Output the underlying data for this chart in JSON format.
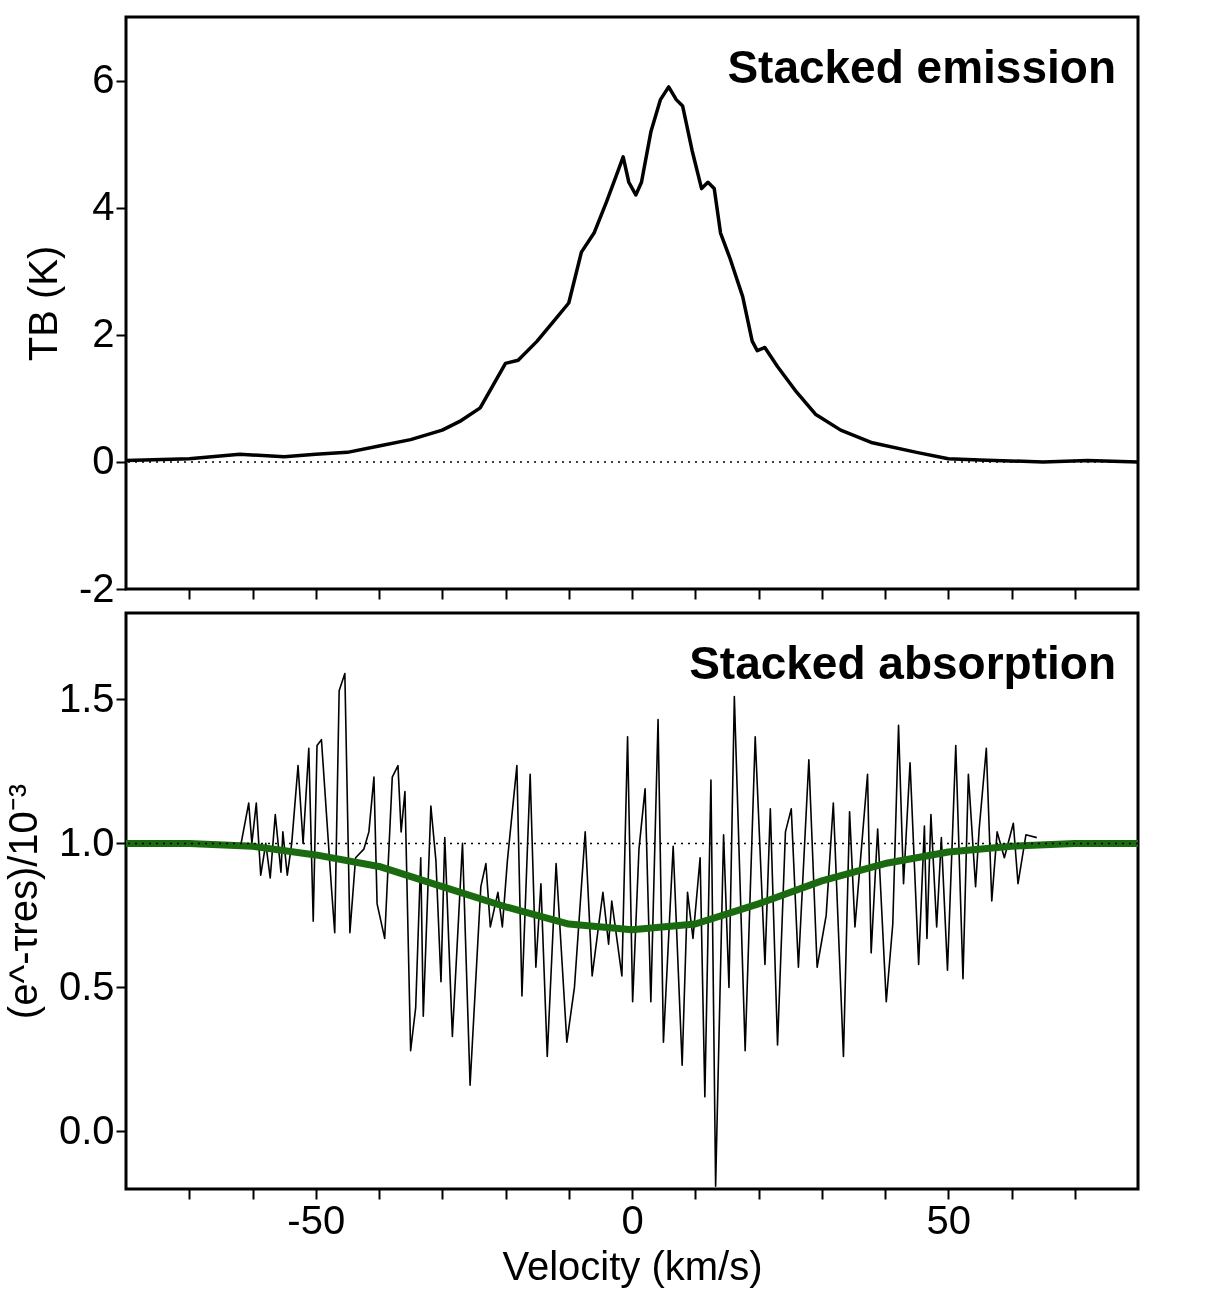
{
  "chart_data": [
    {
      "type": "line",
      "ylabel": "TB (K)",
      "xlim": [
        -80,
        80
      ],
      "ylim": [
        -2,
        7
      ],
      "tick_labels": "y",
      "xticks": [
        {
          "value": -70,
          "label": null
        },
        {
          "value": -60,
          "label": null
        },
        -50,
        {
          "value": -40,
          "label": null
        },
        {
          "value": -30,
          "label": null
        },
        {
          "value": -20,
          "label": null
        },
        {
          "value": -10,
          "label": null
        },
        0,
        {
          "value": 10,
          "label": null
        },
        {
          "value": 20,
          "label": null
        },
        {
          "value": 30,
          "label": null
        },
        {
          "value": 40,
          "label": null
        },
        50,
        {
          "value": 60,
          "label": null
        },
        {
          "value": 70,
          "label": null
        }
      ],
      "yticks": [
        -2,
        0,
        2,
        4,
        6
      ],
      "series": [
        {
          "color": "#000000",
          "x": [
            -80,
            -70,
            -62,
            -55,
            -50,
            -45,
            -40,
            -35,
            -30,
            -27,
            -24,
            -22,
            -20,
            -18,
            -15,
            -12.5,
            -10,
            -8,
            -6,
            -4,
            -2.5,
            -1.4,
            -0.5,
            0.6,
            1.5,
            3,
            4.5,
            5.8,
            7,
            8,
            9.5,
            11,
            12,
            13,
            14,
            15.5,
            17.5,
            19,
            19.8,
            21,
            23,
            26,
            29,
            33,
            38,
            45,
            50,
            55,
            65,
            72,
            80
          ],
          "values": [
            0.02,
            0.05,
            0.12,
            0.08,
            0.12,
            0.15,
            0.25,
            0.35,
            0.5,
            0.65,
            0.85,
            1.2,
            1.55,
            1.6,
            1.9,
            2.2,
            2.5,
            3.3,
            3.6,
            4.1,
            4.5,
            4.8,
            4.4,
            4.2,
            4.4,
            5.2,
            5.7,
            5.9,
            5.7,
            5.6,
            4.9,
            4.3,
            4.4,
            4.3,
            3.6,
            3.2,
            2.6,
            1.9,
            1.75,
            1.8,
            1.5,
            1.1,
            0.75,
            0.5,
            0.3,
            0.15,
            0.05,
            0.03,
            0.0,
            0.02,
            0.0
          ]
        }
      ],
      "ref_lines": [
        {
          "axis": "y",
          "value": 0,
          "line_style": "dotted"
        }
      ],
      "annotations": [
        "Stacked emission"
      ]
    },
    {
      "type": "line",
      "xlabel": "Velocity (km/s)",
      "ylabel": "(e^-τres)/10⁻³",
      "xlim": [
        -80,
        80
      ],
      "ylim": [
        -0.2,
        1.8
      ],
      "xticks": [
        {
          "value": -70,
          "label": null
        },
        {
          "value": -60,
          "label": null
        },
        -50,
        {
          "value": -40,
          "label": null
        },
        {
          "value": -30,
          "label": null
        },
        {
          "value": -20,
          "label": null
        },
        {
          "value": -10,
          "label": null
        },
        0,
        {
          "value": 10,
          "label": null
        },
        {
          "value": 20,
          "label": null
        },
        {
          "value": 30,
          "label": null
        },
        {
          "value": 40,
          "label": null
        },
        50,
        {
          "value": 60,
          "label": null
        },
        {
          "value": 70,
          "label": null
        }
      ],
      "yticks": [
        {
          "value": 0,
          "label": "0.0"
        },
        0.5,
        {
          "value": 1,
          "label": "1.0"
        },
        1.5
      ],
      "series": [
        {
          "color": "#000000",
          "x": [
            -61.8,
            -60.6,
            -60.1,
            -59.4,
            -58.7,
            -57.9,
            -57.2,
            -56.4,
            -55.5,
            -55.2,
            -54.5,
            -53.8,
            -52.8,
            -52.0,
            -51.1,
            -50.4,
            -49.8,
            -49.1,
            -47.5,
            -47.0,
            -46.3,
            -45.4,
            -44.6,
            -43.7,
            -42.4,
            -41.6,
            -40.8,
            -40.3,
            -39.1,
            -37.9,
            -37.0,
            -36.5,
            -35.9,
            -35.0,
            -34.2,
            -33.4,
            -33.0,
            -31.8,
            -31.0,
            -30.2,
            -29.6,
            -28.4,
            -26.8,
            -25.6,
            -23.9,
            -23.1,
            -22.4,
            -21.2,
            -20.5,
            -19.7,
            -18.2,
            -17.4,
            -16.1,
            -15.2,
            -14.4,
            -13.4,
            -12.0,
            -10.3,
            -9.1,
            -7.4,
            -6.3,
            -4.6,
            -3.7,
            -3.2,
            -1.6,
            -0.7,
            0.1,
            1.1,
            2.07,
            2.98,
            4.12,
            4.97,
            6.51,
            7.93,
            8.78,
            9.64,
            10.77,
            11.52,
            12.48,
            13.22,
            14.48,
            15.33,
            16.18,
            17.89,
            19.48,
            21.02,
            21.87,
            23.01,
            24.26,
            25.18,
            26.31,
            27.96,
            29.27,
            30.7,
            31.83,
            33.43,
            34.4,
            35.25,
            37.24,
            37.81,
            38.84,
            40.2,
            41.23,
            42.14,
            42.93,
            43.96,
            45.32,
            46.23,
            46.63,
            47.26,
            48.17,
            48.91,
            49.88,
            51.19,
            52.33,
            53.18,
            54.32,
            54.89,
            56.02,
            56.88,
            57.73,
            58.87,
            60.29,
            61.03,
            62.28,
            64
          ],
          "values": [
            1.0,
            1.14,
            1.0,
            1.14,
            0.89,
            1.0,
            0.88,
            1.1,
            0.9,
            1.04,
            0.89,
            1.0,
            1.27,
            1.0,
            1.33,
            0.73,
            1.34,
            1.36,
            0.84,
            0.69,
            1.53,
            1.59,
            0.69,
            0.95,
            0.98,
            1.04,
            1.23,
            0.79,
            0.67,
            1.23,
            1.27,
            1.04,
            1.18,
            0.28,
            0.43,
            0.95,
            0.4,
            1.13,
            0.94,
            0.52,
            1.02,
            0.33,
            1.0,
            0.16,
            0.85,
            0.93,
            0.71,
            0.83,
            0.71,
            0.94,
            1.27,
            0.47,
            1.24,
            0.57,
            0.86,
            0.26,
            0.93,
            0.31,
            0.5,
            1.04,
            0.54,
            0.83,
            0.65,
            0.8,
            0.54,
            1.37,
            0.45,
            0.98,
            1.19,
            0.45,
            1.43,
            0.31,
            0.99,
            0.23,
            0.83,
            0.67,
            0.95,
            0.12,
            1.22,
            -0.19,
            1.03,
            0.5,
            1.51,
            0.28,
            1.37,
            0.58,
            1.12,
            0.3,
            1.04,
            1.12,
            0.57,
            1.29,
            0.57,
            0.75,
            1.14,
            0.26,
            1.11,
            0.71,
            1.24,
            0.62,
            1.05,
            0.45,
            0.72,
            1.41,
            0.86,
            1.28,
            0.58,
            1.06,
            0.67,
            1.1,
            0.71,
            1.02,
            0.56,
            1.34,
            0.53,
            1.24,
            0.85,
            1.05,
            1.33,
            0.8,
            1.04,
            0.95,
            1.07,
            0.86,
            1.03,
            1.02
          ]
        },
        {
          "color": "#1a6b0f",
          "x": [
            -80,
            -70,
            -60,
            -50,
            -40,
            -30,
            -20,
            -10,
            0,
            10,
            20,
            30,
            40,
            50,
            60,
            70,
            80
          ],
          "values": [
            1.0,
            1.0,
            0.99,
            0.96,
            0.92,
            0.85,
            0.78,
            0.72,
            0.7,
            0.72,
            0.79,
            0.87,
            0.93,
            0.97,
            0.99,
            1.0,
            1.0
          ]
        }
      ],
      "ref_lines": [
        {
          "axis": "y",
          "value": 1,
          "line_style": "dotted"
        }
      ],
      "annotations": [
        "Stacked absorption"
      ]
    }
  ]
}
